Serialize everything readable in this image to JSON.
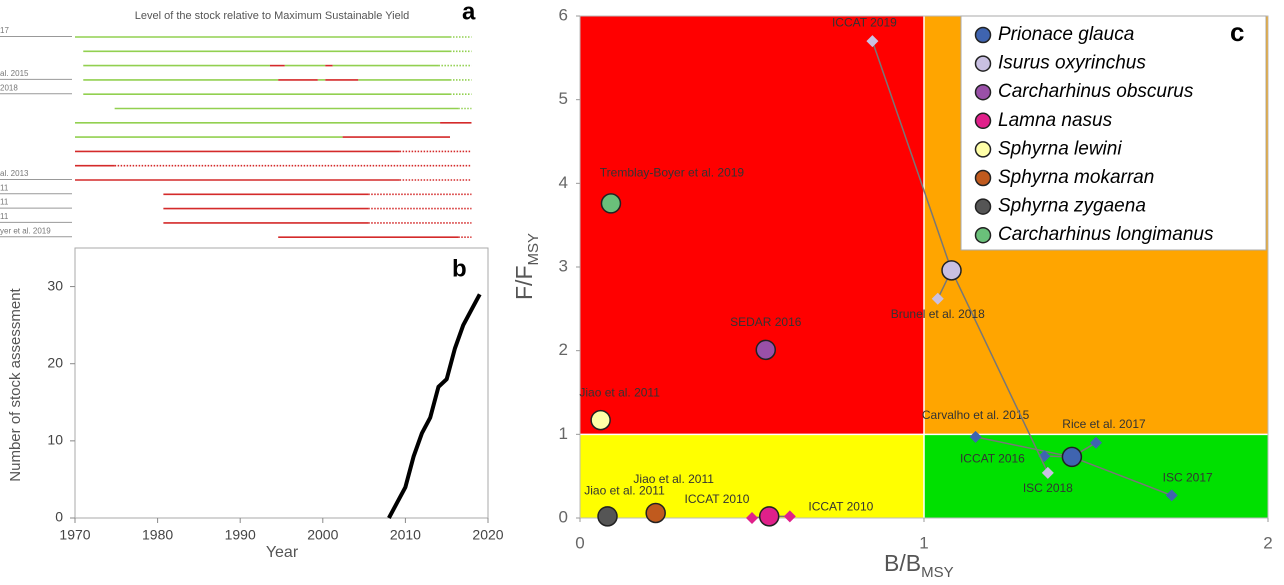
{
  "chart_data": [
    {
      "type": "timeline",
      "title": "Level of the stock relative to Maximum Sustainable Yield",
      "panel_label": "a",
      "xlim": [
        1970,
        2020
      ],
      "rows": [
        {
          "label": "17",
          "segments": [
            {
              "from": 1970,
              "to": 2015.4,
              "color": "#92d050"
            },
            {
              "from": 2015.4,
              "to": 2018,
              "color": "#92d050",
              "dotted": true
            }
          ]
        },
        {
          "segments": [
            {
              "from": 1971,
              "to": 2015.4,
              "color": "#92d050"
            },
            {
              "from": 2015.4,
              "to": 2018,
              "color": "#92d050",
              "dotted": true
            }
          ]
        },
        {
          "segments": [
            {
              "from": 1971,
              "to": 1993.6,
              "color": "#92d050"
            },
            {
              "from": 1993.6,
              "to": 1995.4,
              "color": "#d42a2a"
            },
            {
              "from": 1995.4,
              "to": 2000.3,
              "color": "#92d050"
            },
            {
              "from": 2000.3,
              "to": 2001.2,
              "color": "#d42a2a"
            },
            {
              "from": 2001.2,
              "to": 2014,
              "color": "#92d050"
            },
            {
              "from": 2014,
              "to": 2018,
              "color": "#92d050",
              "dotted": true
            }
          ]
        },
        {
          "label": "al. 2015",
          "segments": [
            {
              "from": 1971,
              "to": 1994.6,
              "color": "#92d050"
            },
            {
              "from": 1994.6,
              "to": 1999.4,
              "color": "#d42a2a"
            },
            {
              "from": 1999.4,
              "to": 2000.3,
              "color": "#92d050"
            },
            {
              "from": 2000.3,
              "to": 2004.3,
              "color": "#d42a2a"
            },
            {
              "from": 2004.3,
              "to": 2015.4,
              "color": "#92d050"
            },
            {
              "from": 2015.4,
              "to": 2018,
              "color": "#92d050",
              "dotted": true
            }
          ]
        },
        {
          "label": "2018",
          "segments": [
            {
              "from": 1971,
              "to": 2015.4,
              "color": "#92d050"
            },
            {
              "from": 2015.4,
              "to": 2018,
              "color": "#92d050",
              "dotted": true
            }
          ]
        },
        {
          "segments": [
            {
              "from": 1974.8,
              "to": 2016.4,
              "color": "#92d050"
            },
            {
              "from": 2016.4,
              "to": 2018,
              "color": "#92d050",
              "dotted": true
            }
          ]
        },
        {
          "segments": [
            {
              "from": 1970,
              "to": 2014.2,
              "color": "#92d050"
            },
            {
              "from": 2014.2,
              "to": 2018,
              "color": "#d42a2a"
            }
          ]
        },
        {
          "segments": [
            {
              "from": 1970,
              "to": 2002.4,
              "color": "#92d050"
            },
            {
              "from": 2002.4,
              "to": 2015.4,
              "color": "#d42a2a"
            }
          ]
        },
        {
          "segments": [
            {
              "from": 1970,
              "to": 2009.3,
              "color": "#d42a2a"
            },
            {
              "from": 2009.3,
              "to": 2018,
              "color": "#d42a2a",
              "dotted": true
            }
          ]
        },
        {
          "segments": [
            {
              "from": 1970,
              "to": 1974.8,
              "color": "#d42a2a"
            },
            {
              "from": 1974.8,
              "to": 2018,
              "color": "#d42a2a",
              "dotted": true
            }
          ]
        },
        {
          "label": "al. 2013",
          "segments": [
            {
              "from": 1970,
              "to": 2009.3,
              "color": "#d42a2a"
            },
            {
              "from": 2009.3,
              "to": 2018,
              "color": "#d42a2a",
              "dotted": true
            }
          ]
        },
        {
          "label": "11",
          "segments": [
            {
              "from": 1980.7,
              "to": 2005.5,
              "color": "#d42a2a"
            },
            {
              "from": 2005.5,
              "to": 2018,
              "color": "#d42a2a",
              "dotted": true
            }
          ]
        },
        {
          "label": "11",
          "segments": [
            {
              "from": 1980.7,
              "to": 2005.5,
              "color": "#d42a2a"
            },
            {
              "from": 2005.5,
              "to": 2018,
              "color": "#d42a2a",
              "dotted": true
            }
          ]
        },
        {
          "label": "11",
          "segments": [
            {
              "from": 1980.7,
              "to": 2005.5,
              "color": "#d42a2a"
            },
            {
              "from": 2005.5,
              "to": 2018,
              "color": "#d42a2a",
              "dotted": true
            }
          ]
        },
        {
          "label": "yer et al. 2019",
          "segments": [
            {
              "from": 1994.6,
              "to": 2016.4,
              "color": "#d42a2a"
            },
            {
              "from": 2016.4,
              "to": 2018,
              "color": "#d42a2a",
              "dotted": true
            }
          ]
        }
      ]
    },
    {
      "type": "line",
      "panel_label": "b",
      "xlabel": "Year",
      "ylabel": "Number of stock assessment",
      "x": [
        2008,
        2009,
        2010,
        2011,
        2012,
        2013,
        2014,
        2015,
        2016,
        2017,
        2018,
        2019
      ],
      "values": [
        0,
        2,
        4,
        8,
        11,
        13,
        17,
        18,
        22,
        25,
        27,
        29
      ],
      "color": "#000000",
      "xlim": [
        1970,
        2020
      ],
      "xticks": [
        1970,
        1980,
        1990,
        2000,
        2010,
        2020
      ],
      "ylim": [
        0,
        35
      ],
      "yticks": [
        0,
        10,
        20,
        30
      ]
    },
    {
      "type": "scatter",
      "panel_label": "c",
      "xlabel": "B/B",
      "xlabel_sub": "MSY",
      "ylabel": "F/F",
      "ylabel_sub": "MSY",
      "xlim": [
        0,
        2
      ],
      "xticks": [
        0,
        1,
        2
      ],
      "ylim": [
        0,
        6
      ],
      "yticks": [
        0,
        1,
        2,
        3,
        4,
        5,
        6
      ],
      "reference": {
        "x": 1,
        "y": 1
      },
      "zone_colors": {
        "top_left": "#ff0000",
        "top_right": "#ffa500",
        "bottom_left": "#ffff00",
        "bottom_right": "#00e000"
      },
      "legend": "upper right",
      "series": [
        {
          "name": "Prionace glauca",
          "color": "#3f64b0",
          "x": 1.43,
          "y": 0.73,
          "assessments": [
            {
              "label": "Carvalho et al. 2015",
              "x": 1.15,
              "y": 0.97
            },
            {
              "label": "ICCAT 2016",
              "x": 1.35,
              "y": 0.74
            },
            {
              "label": "Rice et al. 2017",
              "x": 1.5,
              "y": 0.9
            },
            {
              "label": "ISC 2017",
              "x": 1.72,
              "y": 0.27
            }
          ]
        },
        {
          "name": "Isurus oxyrinchus",
          "color": "#c9c0e2",
          "x": 1.08,
          "y": 2.96,
          "assessments": [
            {
              "label": "ICCAT 2019",
              "x": 0.85,
              "y": 5.7
            },
            {
              "label": "Brunel et al. 2018",
              "x": 1.04,
              "y": 2.62
            },
            {
              "label": "ISC 2018",
              "x": 1.36,
              "y": 0.54
            }
          ]
        },
        {
          "name": "Carcharhinus obscurus",
          "color": "#9a50a8",
          "x": 0.54,
          "y": 2.01,
          "label": "SEDAR 2016"
        },
        {
          "name": "Lamna nasus",
          "color": "#e0208a",
          "x": 0.55,
          "y": 0.02,
          "assessments": [
            {
              "label": "ICCAT 2010",
              "x": 0.5,
              "y": 0
            },
            {
              "label": "ICCAT 2010",
              "x": 0.61,
              "y": 0.02
            }
          ]
        },
        {
          "name": "Sphyrna lewini",
          "color": "#ffffa8",
          "x": 0.06,
          "y": 1.17,
          "label": "Jiao et al. 2011"
        },
        {
          "name": "Sphyrna mokarran",
          "color": "#c05a1e",
          "x": 0.22,
          "y": 0.06,
          "label": "Jiao et al. 2011"
        },
        {
          "name": "Sphyrna zygaena",
          "color": "#555555",
          "x": 0.08,
          "y": 0.02,
          "label": "Jiao et al. 2011"
        },
        {
          "name": "Carcharhinus longimanus",
          "color": "#6ac07a",
          "x": 0.09,
          "y": 3.76,
          "label": "Tremblay-Boyer et al. 2019"
        }
      ]
    }
  ]
}
